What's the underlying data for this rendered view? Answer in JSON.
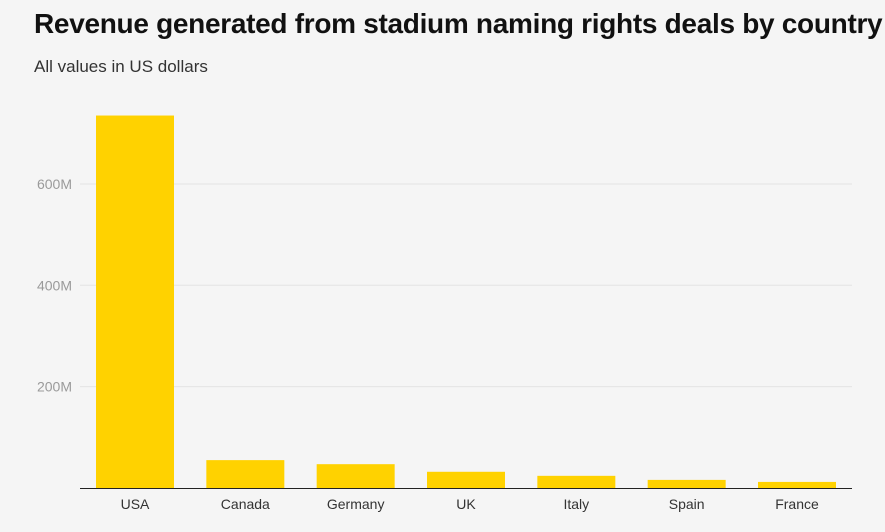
{
  "chart_data": {
    "type": "bar",
    "title": "Revenue generated from stadium naming rights deals by country",
    "subtitle": "All values in US dollars",
    "categories": [
      "USA",
      "Canada",
      "Germany",
      "UK",
      "Italy",
      "Spain",
      "France"
    ],
    "values": [
      735,
      55,
      47,
      32,
      24,
      16,
      12
    ],
    "unit": "M",
    "ylim": [
      0,
      740
    ],
    "yticks": [
      {
        "value": 200,
        "label": "200M"
      },
      {
        "value": 400,
        "label": "400M"
      },
      {
        "value": 600,
        "label": "600M"
      }
    ],
    "xlabel": "",
    "ylabel": "",
    "grid": true,
    "bar_color": "#ffd200",
    "grid_color": "#e3e3e3",
    "axis_color": "#222222"
  }
}
